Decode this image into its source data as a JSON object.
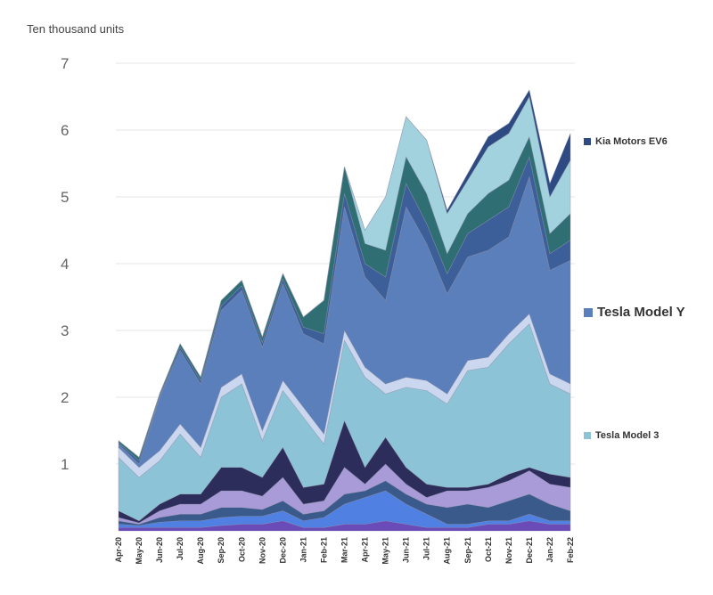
{
  "chart_data": {
    "type": "area",
    "stacked": true,
    "ylabel": "Ten thousand units",
    "ylim": [
      0,
      7
    ],
    "yticks": [
      "1",
      "2",
      "3",
      "4",
      "5",
      "6",
      "7"
    ],
    "grid": true,
    "legend_position": "right",
    "x": [
      "Apr-20",
      "May-20",
      "Jun-20",
      "Jul-20",
      "Aug-20",
      "Sep-20",
      "Oct-20",
      "Nov-20",
      "Dec-20",
      "Jan-21",
      "Feb-21",
      "Mar-21",
      "Apr-21",
      "May-21",
      "Jun-21",
      "Jul-21",
      "Aug-21",
      "Sep-21",
      "Oct-21",
      "Nov-21",
      "Dec-21",
      "Jan-22",
      "Feb-22"
    ],
    "series": [
      {
        "color": "#6a4bb8",
        "values": [
          0.05,
          0.05,
          0.05,
          0.05,
          0.05,
          0.08,
          0.1,
          0.1,
          0.15,
          0.05,
          0.05,
          0.1,
          0.1,
          0.15,
          0.1,
          0.05,
          0.05,
          0.05,
          0.1,
          0.1,
          0.15,
          0.1,
          0.1
        ]
      },
      {
        "color": "#4f80e2",
        "values": [
          0.05,
          0.03,
          0.08,
          0.1,
          0.1,
          0.12,
          0.12,
          0.12,
          0.15,
          0.1,
          0.15,
          0.3,
          0.4,
          0.45,
          0.3,
          0.2,
          0.05,
          0.05,
          0.05,
          0.05,
          0.1,
          0.05,
          0.05
        ]
      },
      {
        "color": "#3b5a8c",
        "values": [
          0.05,
          0.02,
          0.07,
          0.1,
          0.1,
          0.15,
          0.13,
          0.1,
          0.15,
          0.1,
          0.1,
          0.15,
          0.1,
          0.15,
          0.15,
          0.15,
          0.25,
          0.3,
          0.2,
          0.3,
          0.3,
          0.25,
          0.15
        ]
      },
      {
        "color": "#a99ad8",
        "values": [
          0.05,
          0.02,
          0.1,
          0.15,
          0.15,
          0.25,
          0.25,
          0.2,
          0.35,
          0.15,
          0.15,
          0.4,
          0.1,
          0.25,
          0.15,
          0.1,
          0.25,
          0.2,
          0.3,
          0.3,
          0.35,
          0.3,
          0.35
        ]
      },
      {
        "color": "#2d2d5c",
        "values": [
          0.1,
          0.03,
          0.1,
          0.15,
          0.15,
          0.35,
          0.35,
          0.28,
          0.45,
          0.25,
          0.25,
          0.7,
          0.25,
          0.4,
          0.25,
          0.2,
          0.05,
          0.05,
          0.05,
          0.1,
          0.05,
          0.15,
          0.15
        ]
      },
      {
        "name": "Tesla Model 3",
        "color": "#8dc3d6",
        "values": [
          0.8,
          0.65,
          0.65,
          0.9,
          0.55,
          1.05,
          1.25,
          0.55,
          0.85,
          1.05,
          0.6,
          1.2,
          1.35,
          0.65,
          1.2,
          1.4,
          1.25,
          1.75,
          1.75,
          1.95,
          2.15,
          1.35,
          1.25
        ]
      },
      {
        "color": "#cbd7ef",
        "values": [
          0.15,
          0.15,
          0.15,
          0.15,
          0.15,
          0.15,
          0.15,
          0.15,
          0.15,
          0.15,
          0.15,
          0.15,
          0.15,
          0.15,
          0.15,
          0.15,
          0.15,
          0.15,
          0.15,
          0.15,
          0.15,
          0.15,
          0.15
        ]
      },
      {
        "name": "Tesla Model Y",
        "color": "#5b7fbb",
        "values": [
          0.05,
          0.05,
          0.8,
          1.1,
          0.95,
          1.15,
          1.25,
          1.25,
          1.45,
          1.1,
          1.35,
          1.85,
          1.35,
          1.25,
          2.55,
          2.05,
          1.5,
          1.55,
          1.6,
          1.45,
          2.05,
          1.55,
          1.85
        ]
      },
      {
        "color": "#3d5f99",
        "values": [
          0.02,
          0.05,
          0.02,
          0.05,
          0.05,
          0.07,
          0.07,
          0.07,
          0.07,
          0.1,
          0.15,
          0.2,
          0.2,
          0.35,
          0.35,
          0.3,
          0.3,
          0.35,
          0.45,
          0.45,
          0.3,
          0.25,
          0.3
        ]
      },
      {
        "color": "#2f6f74",
        "values": [
          0.03,
          0.05,
          0.03,
          0.05,
          0.05,
          0.08,
          0.08,
          0.08,
          0.08,
          0.15,
          0.5,
          0.4,
          0.3,
          0.4,
          0.4,
          0.45,
          0.3,
          0.3,
          0.4,
          0.4,
          0.3,
          0.3,
          0.4
        ]
      },
      {
        "color": "#a2d2de",
        "values": [
          0,
          0,
          0,
          0,
          0,
          0,
          0,
          0,
          0,
          0,
          0,
          0,
          0.2,
          0.8,
          0.6,
          0.8,
          0.6,
          0.5,
          0.7,
          0.7,
          0.6,
          0.55,
          0.8
        ]
      },
      {
        "name": "Kia Motors EV6",
        "color": "#2e4a82",
        "values": [
          0,
          0,
          0,
          0,
          0,
          0,
          0,
          0,
          0,
          0,
          0,
          0,
          0,
          0,
          0,
          0,
          0.05,
          0.1,
          0.15,
          0.15,
          0.1,
          0.2,
          0.4
        ]
      }
    ],
    "legend": [
      "Kia Motors EV6",
      "Tesla Model Y",
      "Tesla Model 3"
    ]
  }
}
